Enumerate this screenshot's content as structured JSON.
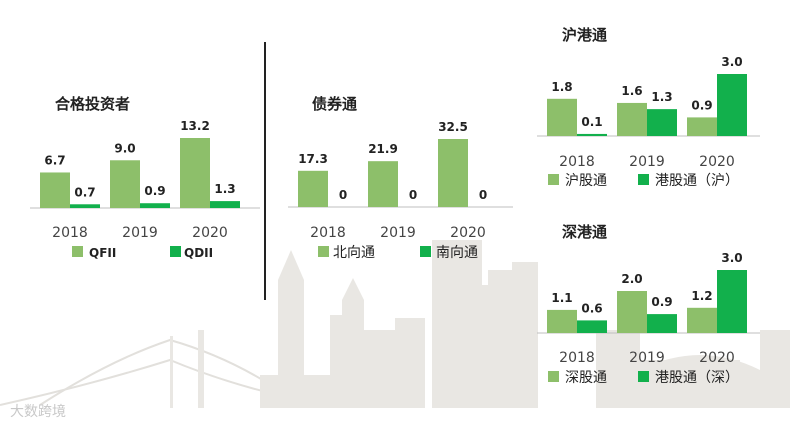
{
  "colors": {
    "light": "#8dbf6a",
    "dark": "#12b04c",
    "axis": "#bfbfbf",
    "skyline": "#e9e7e3",
    "text": "#222222",
    "tick": "#444444"
  },
  "watermark": "大数跨境",
  "chart_data": [
    {
      "id": "qfii",
      "type": "bar",
      "title": "合格投资者",
      "categories": [
        "2018",
        "2019",
        "2020"
      ],
      "series": [
        {
          "name": "QFII",
          "color": "light",
          "values": [
            "6.7",
            "9.0",
            "13.2"
          ]
        },
        {
          "name": "QDII",
          "color": "dark",
          "values": [
            "0.7",
            "0.9",
            "1.3"
          ]
        }
      ],
      "ylim": [
        0,
        13.2
      ],
      "legend": "bottom"
    },
    {
      "id": "bond",
      "type": "bar",
      "title": "债券通",
      "categories": [
        "2018",
        "2019",
        "2020"
      ],
      "series": [
        {
          "name": "北向通",
          "color": "light",
          "values": [
            "17.3",
            "21.9",
            "32.5"
          ]
        },
        {
          "name": "南向通",
          "color": "dark",
          "values": [
            "0",
            "0",
            "0"
          ]
        }
      ],
      "ylim": [
        0,
        32.5
      ],
      "legend": "bottom"
    },
    {
      "id": "sh",
      "type": "bar",
      "title": "沪港通",
      "categories": [
        "2018",
        "2019",
        "2020"
      ],
      "series": [
        {
          "name": "沪股通",
          "color": "light",
          "values": [
            "1.8",
            "1.6",
            "0.9"
          ]
        },
        {
          "name": "港股通（沪）",
          "color": "dark",
          "values": [
            "0.1",
            "1.3",
            "3.0"
          ]
        }
      ],
      "ylim": [
        0,
        3.0
      ],
      "legend": "bottom"
    },
    {
      "id": "sz",
      "type": "bar",
      "title": "深港通",
      "categories": [
        "2018",
        "2019",
        "2020"
      ],
      "series": [
        {
          "name": "深股通",
          "color": "light",
          "values": [
            "1.1",
            "2.0",
            "1.2"
          ]
        },
        {
          "name": "港股通（深）",
          "color": "dark",
          "values": [
            "0.6",
            "0.9",
            "3.0"
          ]
        }
      ],
      "ylim": [
        0,
        3.0
      ],
      "legend": "bottom"
    }
  ]
}
